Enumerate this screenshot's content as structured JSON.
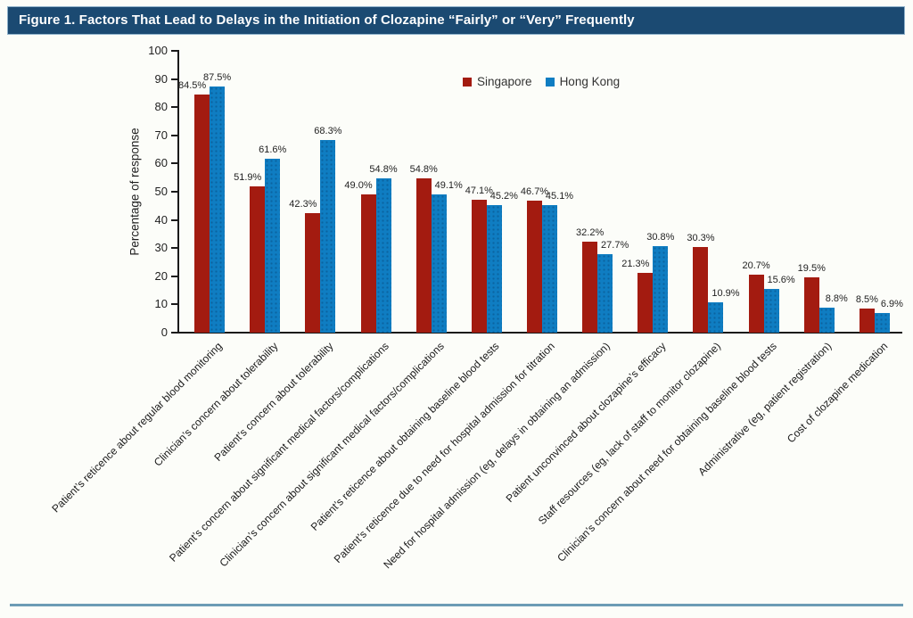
{
  "figure": {
    "title": "Figure 1. Factors That Lead to Delays in the Initiation of Clozapine “Fairly” or “Very” Frequently"
  },
  "chart_data": {
    "type": "bar",
    "title": "Figure 1. Factors That Lead to Delays in the Initiation of Clozapine “Fairly” or “Very” Frequently",
    "xlabel": "",
    "ylabel": "Percentage of response",
    "ylim": [
      0,
      100
    ],
    "ytick_step": 10,
    "grid": false,
    "legend_position": "top-center",
    "value_label_suffix": "%",
    "categories": [
      "Patient’s reticence about regular blood monitoring",
      "Clinician’s concern about tolerability",
      "Patient’s concern about tolerability",
      "Patient’s concern about significant medical factors/complications",
      "Clinician’s concern about significant medical factors/complications",
      "Patient’s reticence about obtaining baseline blood tests",
      "Patient’s reticence due to need for hospital admission for titration",
      "Need for hospital admission (eg, delays in obtaining an admission)",
      "Patient unconvinced about clozapine’s efficacy",
      "Staff resources (eg, lack of staff to monitor clozapine)",
      "Clinician’s concern about need for obtaining baseline blood tests",
      "Administrative (eg, patient registration)",
      "Cost of clozapine medication"
    ],
    "series": [
      {
        "name": "Singapore",
        "color": "#A31B10",
        "values": [
          84.5,
          51.9,
          42.3,
          49.0,
          54.8,
          47.1,
          46.7,
          32.2,
          21.3,
          30.3,
          20.7,
          19.5,
          8.5
        ]
      },
      {
        "name": "Hong Kong",
        "color": "#0F7DC2",
        "values": [
          87.5,
          61.6,
          68.3,
          54.8,
          49.1,
          45.2,
          45.1,
          27.7,
          30.8,
          10.9,
          15.6,
          8.8,
          6.9
        ]
      }
    ]
  },
  "colors": {
    "background": "#FCFDF9",
    "title_bar_bg": "#1B4A72",
    "title_text": "#FFFFFF",
    "axis": "#1A1A1A",
    "bottom_rule": "#6C9CB5"
  }
}
